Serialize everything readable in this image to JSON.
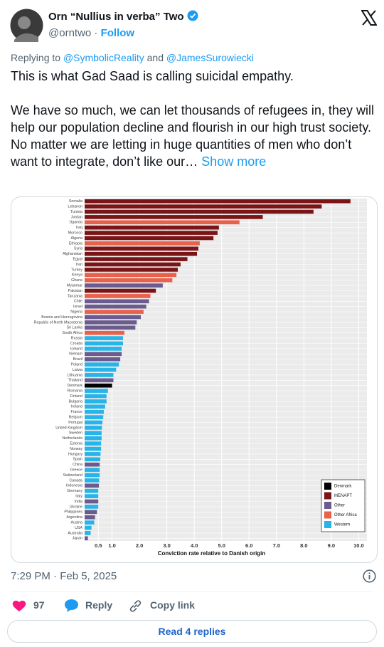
{
  "header": {
    "name": "Orn “Nullius in verba” Two",
    "handle": "@orntwo",
    "separator": "·",
    "follow": "Follow"
  },
  "reply_to": {
    "prefix": "Replying to",
    "users": [
      "@SymbolicReality",
      "@JamesSurowiecki"
    ],
    "conjunction": "and"
  },
  "text": {
    "paragraphs": [
      "This is what Gad Saad is calling suicidal empathy.",
      "We have so much, we can let thousands of refugees in, they will help our population decline and flourish in our high trust society. No matter we are letting in huge quantities of men who don’t want to integrate, don’t like our…"
    ],
    "show_more": "Show more"
  },
  "chart_data": {
    "type": "hbar",
    "x_label": "Conviction rate relative to Danish origin",
    "categories": [
      "Somalia",
      "Lebanon",
      "Tunisia",
      "Jordan",
      "Uganda",
      "Iraq",
      "Morocco",
      "Algeria",
      "Ethiopia",
      "Syria",
      "Afghanistan",
      "Egypt",
      "Iran",
      "Turkey",
      "Kenya",
      "Ghana",
      "Myanmar",
      "Pakistan",
      "Tanzania",
      "Chile",
      "Israel",
      "Nigeria",
      "Bosnia and Herzegovina",
      "Republic of North Macedonia",
      "Sri Lanka",
      "South Africa",
      "Russia",
      "Croatia",
      "Iceland",
      "Vietnam",
      "Brazil",
      "Poland",
      "Latvia",
      "Lithuania",
      "Thailand",
      "Denmark",
      "Romania",
      "Finland",
      "Bulgaria",
      "Ireland",
      "France",
      "Belgium",
      "Portugal",
      "United Kingdom",
      "Sweden",
      "Netherlands",
      "Estonia",
      "Norway",
      "Hungary",
      "Spain",
      "China",
      "Greece",
      "Switzerland",
      "Canada",
      "Indonesia",
      "Germany",
      "Italy",
      "India",
      "Ukraine",
      "Philippines",
      "Argentina",
      "Austria",
      "USA",
      "Australia",
      "Japan"
    ],
    "series": [
      {
        "name": "Denmark",
        "color": "#000000",
        "values": [
          null,
          null,
          null,
          null,
          null,
          null,
          null,
          null,
          null,
          null,
          null,
          null,
          null,
          null,
          null,
          null,
          null,
          null,
          null,
          null,
          null,
          null,
          null,
          null,
          null,
          null,
          null,
          null,
          null,
          null,
          null,
          null,
          null,
          null,
          null,
          1.0,
          null,
          null,
          null,
          null,
          null,
          null,
          null,
          null,
          null,
          null,
          null,
          null,
          null,
          null,
          null,
          null,
          null,
          null,
          null,
          null,
          null,
          null,
          null,
          null,
          null,
          null,
          null,
          null,
          null
        ]
      },
      {
        "name": "MENAPT",
        "color": "#7a1517",
        "values": [
          9.7,
          8.65,
          8.35,
          6.5,
          null,
          4.9,
          4.85,
          4.7,
          null,
          4.15,
          4.1,
          3.75,
          3.5,
          3.4,
          null,
          null,
          null,
          2.6,
          null,
          null,
          null,
          null,
          null,
          null,
          null,
          null,
          null,
          null,
          null,
          null,
          null,
          null,
          null,
          null,
          null,
          null,
          null,
          null,
          null,
          null,
          null,
          null,
          null,
          null,
          null,
          null,
          null,
          null,
          null,
          null,
          null,
          null,
          null,
          null,
          null,
          null,
          null,
          null,
          null,
          null,
          null,
          null,
          null,
          null,
          null
        ]
      },
      {
        "name": "Other",
        "color": "#6b5b8e",
        "values": [
          null,
          null,
          null,
          null,
          null,
          null,
          null,
          null,
          null,
          null,
          null,
          null,
          null,
          null,
          null,
          null,
          2.85,
          null,
          null,
          2.35,
          2.25,
          null,
          2.05,
          1.9,
          1.85,
          null,
          null,
          null,
          null,
          1.35,
          1.3,
          null,
          null,
          null,
          1.05,
          null,
          null,
          null,
          null,
          null,
          null,
          null,
          null,
          null,
          null,
          null,
          null,
          null,
          null,
          null,
          0.55,
          null,
          null,
          null,
          0.52,
          null,
          null,
          0.5,
          null,
          0.45,
          0.38,
          null,
          null,
          null,
          0.12
        ]
      },
      {
        "name": "Other Africa",
        "color": "#e9604b",
        "values": [
          null,
          null,
          null,
          null,
          5.65,
          null,
          null,
          null,
          4.2,
          null,
          null,
          null,
          null,
          null,
          3.35,
          3.2,
          null,
          null,
          2.4,
          null,
          null,
          2.15,
          null,
          null,
          null,
          1.45,
          null,
          null,
          null,
          null,
          null,
          null,
          null,
          null,
          null,
          null,
          null,
          null,
          null,
          null,
          null,
          null,
          null,
          null,
          null,
          null,
          null,
          null,
          null,
          null,
          null,
          null,
          null,
          null,
          null,
          null,
          null,
          null,
          null,
          null,
          null,
          null,
          null,
          null,
          null
        ]
      },
      {
        "name": "Western",
        "color": "#27b4e8",
        "values": [
          null,
          null,
          null,
          null,
          null,
          null,
          null,
          null,
          null,
          null,
          null,
          null,
          null,
          null,
          null,
          null,
          null,
          null,
          null,
          null,
          null,
          null,
          null,
          null,
          null,
          null,
          1.4,
          1.4,
          1.35,
          null,
          null,
          1.25,
          1.15,
          1.05,
          null,
          null,
          0.85,
          0.8,
          0.8,
          0.75,
          0.7,
          0.68,
          0.65,
          0.63,
          0.62,
          0.62,
          0.6,
          0.6,
          0.58,
          0.57,
          null,
          0.55,
          0.55,
          0.53,
          null,
          0.5,
          0.5,
          null,
          0.5,
          null,
          null,
          0.35,
          0.25,
          0.22,
          null
        ]
      }
    ],
    "xlim": [
      0,
      10.3
    ],
    "xticks": [
      0.5,
      {
        "value": 1,
        "label": "1.0"
      },
      {
        "value": 2,
        "label": "2.0"
      },
      {
        "value": 3,
        "label": "3.0"
      },
      {
        "value": 4,
        "label": "4.0"
      },
      {
        "value": 5,
        "label": "5.0"
      },
      {
        "value": 6,
        "label": "6.0"
      },
      {
        "value": 7,
        "label": "7.0"
      },
      {
        "value": 8,
        "label": "8.0"
      },
      {
        "value": 9,
        "label": "9.0"
      },
      {
        "value": 10,
        "label": "10.0"
      }
    ],
    "grid": true
  },
  "timestamp": "7:29 PM · Feb 5, 2025",
  "actions": {
    "likes": 97,
    "reply": "Reply",
    "copy_link": "Copy link"
  },
  "read_replies": "Read 4 replies"
}
